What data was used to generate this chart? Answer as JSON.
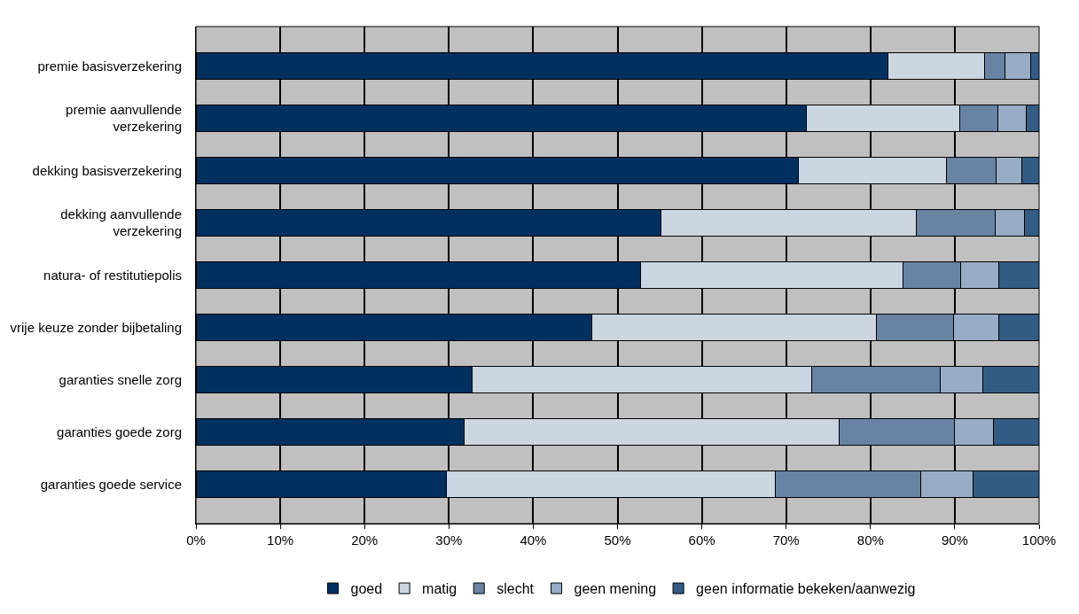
{
  "chart_data": {
    "type": "bar",
    "orientation": "horizontal",
    "stacked": true,
    "grid": "x",
    "legend": "bottom",
    "categories": [
      "premie basisverzekering",
      "premie aanvullende\nverzekering",
      "dekking basisverzekering",
      "dekking aanvullende\nverzekering",
      "natura- of restitutiepolis",
      "vrije keuze zonder bijbetaling",
      "garanties snelle zorg",
      "garanties goede zorg",
      "garanties goede service"
    ],
    "series": [
      {
        "name": "goed",
        "color": "#003060",
        "values": [
          82.1,
          72.4,
          71.4,
          55.1,
          52.7,
          46.9,
          32.8,
          31.8,
          29.7
        ]
      },
      {
        "name": "matig",
        "color": "#ccd6e0",
        "values": [
          11.4,
          18.2,
          17.6,
          30.3,
          31.2,
          33.8,
          40.2,
          44.5,
          39.0
        ]
      },
      {
        "name": "slecht",
        "color": "#6883a3",
        "values": [
          2.4,
          4.5,
          5.9,
          9.4,
          6.8,
          9.1,
          15.3,
          13.7,
          17.3
        ]
      },
      {
        "name": "geen mening",
        "color": "#98adc5",
        "values": [
          3.1,
          3.4,
          3.0,
          3.5,
          4.5,
          5.4,
          5.0,
          4.6,
          6.2
        ]
      },
      {
        "name": "geen informatie bekeken/aanwezig",
        "color": "#335c85",
        "values": [
          1.0,
          1.5,
          2.1,
          1.7,
          4.8,
          4.8,
          6.7,
          5.4,
          7.8
        ]
      }
    ],
    "xlim": [
      0,
      100
    ],
    "xticks": [
      {
        "value": 0,
        "label": "0%"
      },
      {
        "value": 10,
        "label": "10%"
      },
      {
        "value": 20,
        "label": "20%"
      },
      {
        "value": 30,
        "label": "30%"
      },
      {
        "value": 40,
        "label": "40%"
      },
      {
        "value": 50,
        "label": "50%"
      },
      {
        "value": 60,
        "label": "60%"
      },
      {
        "value": 70,
        "label": "70%"
      },
      {
        "value": 80,
        "label": "80%"
      },
      {
        "value": 90,
        "label": "90%"
      },
      {
        "value": 100,
        "label": "100%"
      }
    ]
  }
}
